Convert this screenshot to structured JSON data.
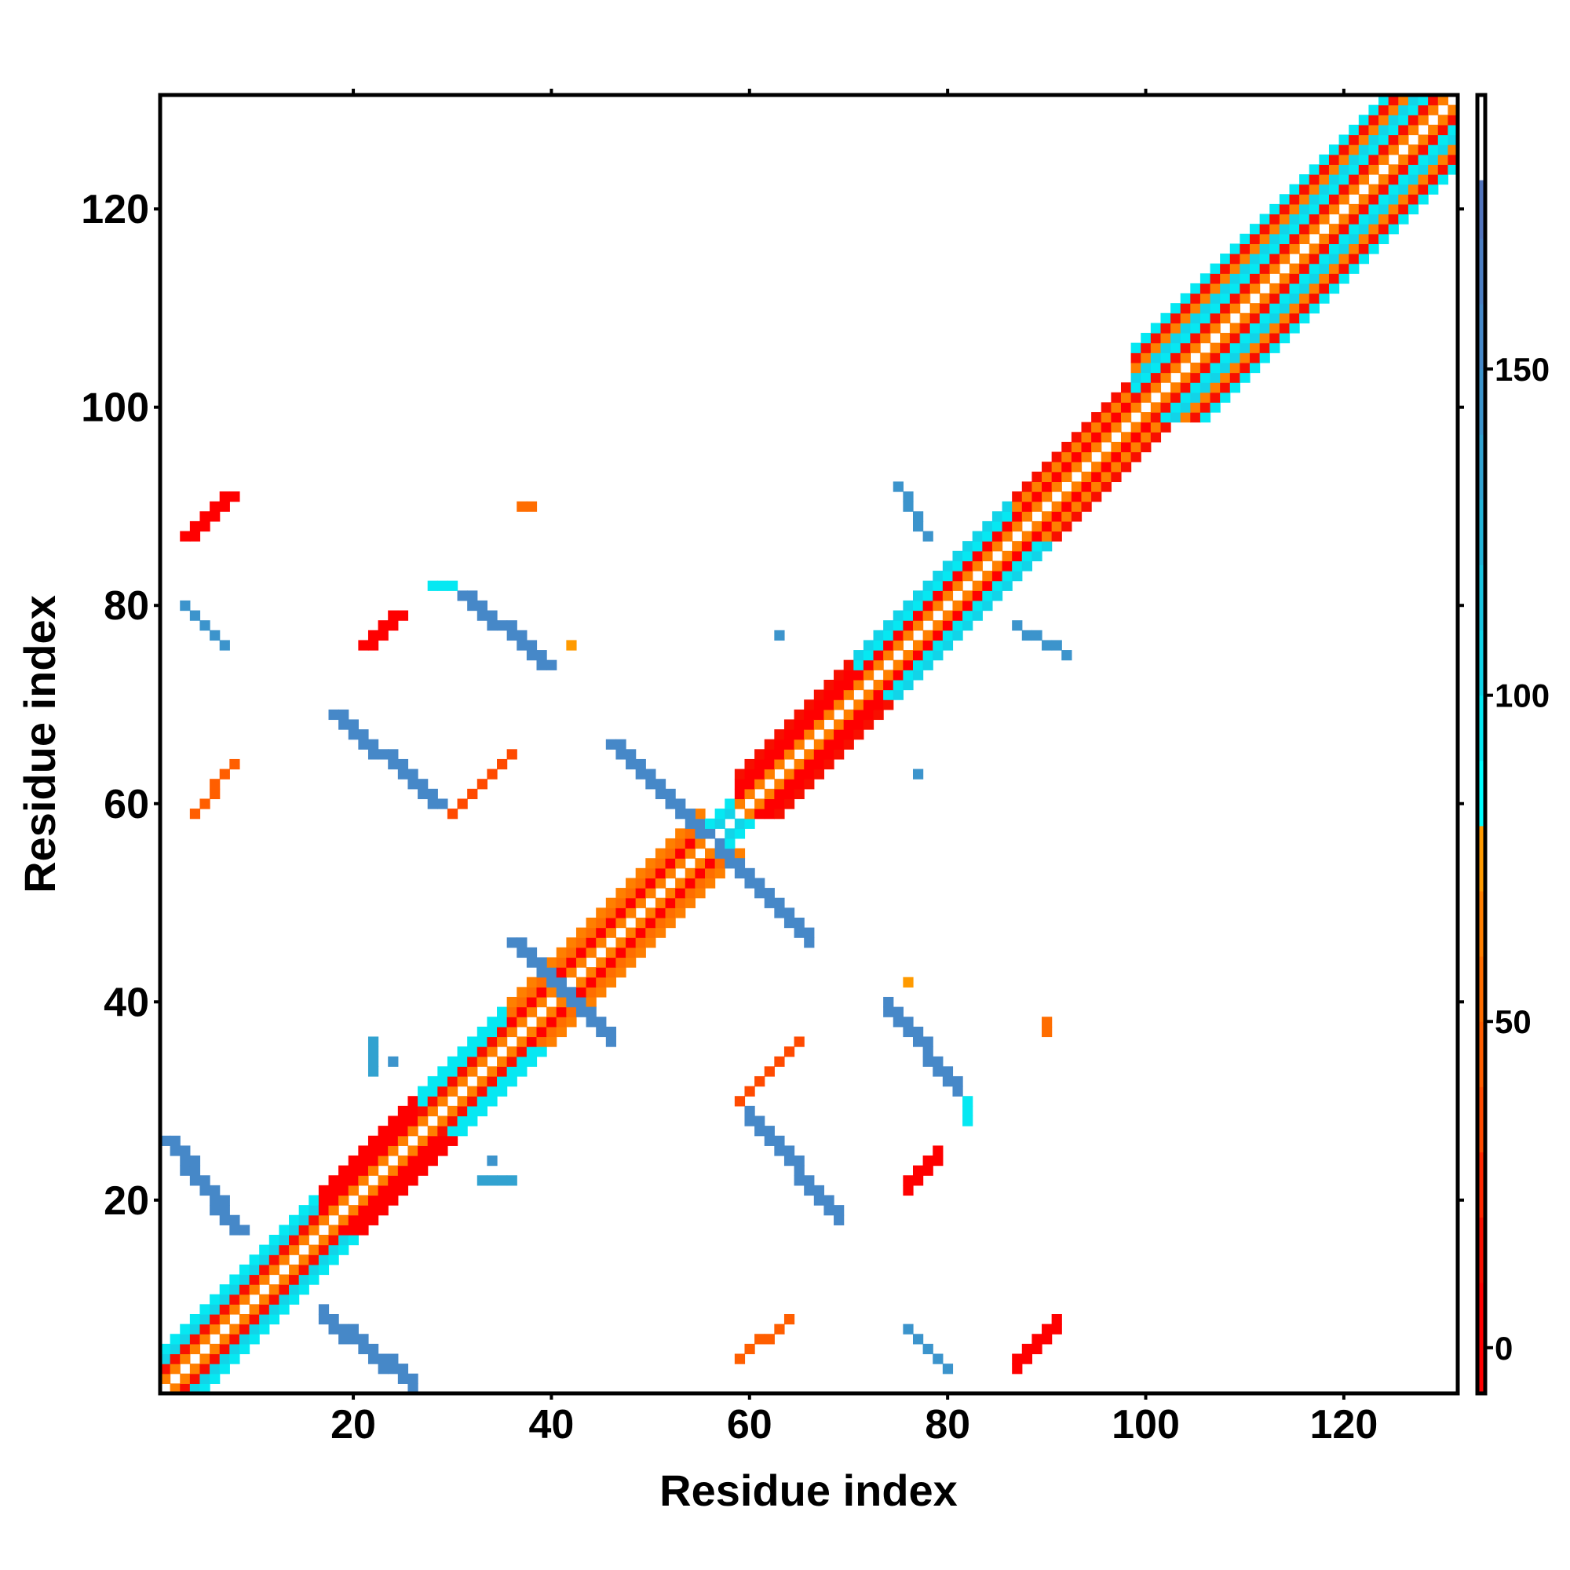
{
  "chart_data": {
    "type": "heatmap",
    "title": "",
    "xlabel": "Residue index",
    "ylabel": "Residue index",
    "n_residues": 131,
    "xlim": [
      0.5,
      131.5
    ],
    "ylim": [
      0.5,
      131.5
    ],
    "xticks": [
      20,
      40,
      60,
      80,
      100,
      120
    ],
    "yticks": [
      20,
      40,
      60,
      80,
      100,
      120
    ],
    "colorbar": {
      "range": [
        -7,
        192
      ],
      "ticks": [
        0,
        50,
        100,
        150
      ],
      "bins": [
        {
          "min": -7,
          "max": 10,
          "color": "#ff0000"
        },
        {
          "min": 10,
          "max": 20,
          "color": "#f80f00"
        },
        {
          "min": 20,
          "max": 30,
          "color": "#ff2800"
        },
        {
          "min": 30,
          "max": 40,
          "color": "#ff4a00"
        },
        {
          "min": 40,
          "max": 50,
          "color": "#ff5e00"
        },
        {
          "min": 50,
          "max": 60,
          "color": "#ff6d00"
        },
        {
          "min": 60,
          "max": 70,
          "color": "#ff7f00"
        },
        {
          "min": 70,
          "max": 80,
          "color": "#ff9a00"
        },
        {
          "min": 80,
          "max": 90,
          "color": "#00ffff"
        },
        {
          "min": 90,
          "max": 100,
          "color": "#06e8f2"
        },
        {
          "min": 100,
          "max": 110,
          "color": "#12d4e8"
        },
        {
          "min": 110,
          "max": 120,
          "color": "#1ac4e0"
        },
        {
          "min": 120,
          "max": 130,
          "color": "#24b4d8"
        },
        {
          "min": 130,
          "max": 140,
          "color": "#32a2d0"
        },
        {
          "min": 140,
          "max": 150,
          "color": "#3c94cc"
        },
        {
          "min": 150,
          "max": 160,
          "color": "#4688c8"
        },
        {
          "min": 160,
          "max": 170,
          "color": "#4c7ec2"
        },
        {
          "min": 170,
          "max": 179,
          "color": "#5274bc"
        },
        {
          "min": 179,
          "max": 192,
          "color": "#ffffff"
        }
      ]
    },
    "diagonal_segments": [
      {
        "from": 1,
        "to": 16,
        "offsets": [
          60,
          10,
          100,
          95
        ]
      },
      {
        "from": 17,
        "to": 26,
        "offsets": [
          65,
          5,
          5,
          3
        ]
      },
      {
        "from": 27,
        "to": 35,
        "offsets": [
          60,
          10,
          95,
          90
        ]
      },
      {
        "from": 36,
        "to": 55,
        "offsets": [
          62,
          5,
          55,
          65
        ]
      },
      {
        "from": 56,
        "to": 58,
        "offsets": [
          100,
          95
        ]
      },
      {
        "from": 59,
        "to": 70,
        "offsets": [
          60,
          3,
          3,
          10
        ]
      },
      {
        "from": 71,
        "to": 86,
        "offsets": [
          62,
          5,
          95,
          100
        ]
      },
      {
        "from": 87,
        "to": 98,
        "offsets": [
          60,
          5,
          60,
          10
        ]
      },
      {
        "from": 99,
        "to": 131,
        "offsets": [
          60,
          10,
          95,
          100,
          60,
          12,
          95
        ]
      }
    ],
    "contact_features": [
      {
        "from": [
          17,
          8
        ],
        "to": [
          26,
          1
        ],
        "width": 2,
        "value": 150
      },
      {
        "from": [
          60,
          28
        ],
        "to": [
          69,
          18
        ],
        "width": 2,
        "value": 158
      },
      {
        "from": [
          41,
          41
        ],
        "to": [
          46,
          36
        ],
        "width": 2,
        "value": 155
      },
      {
        "from": [
          57,
          55
        ],
        "to": [
          66,
          46
        ],
        "width": 2,
        "value": 152
      },
      {
        "from": [
          74,
          39
        ],
        "to": [
          81,
          31
        ],
        "width": 2,
        "value": 152
      },
      {
        "from": [
          76,
          7
        ],
        "to": [
          80,
          3
        ],
        "width": 1,
        "value": 148
      },
      {
        "from": [
          87,
          3
        ],
        "to": [
          91,
          7
        ],
        "width": 2,
        "value": 2
      },
      {
        "from": [
          59,
          4
        ],
        "to": [
          64,
          8
        ],
        "width": 1,
        "value": 40
      },
      {
        "from": [
          59,
          30
        ],
        "to": [
          65,
          36
        ],
        "width": 1,
        "value": 35
      },
      {
        "from": [
          76,
          21
        ],
        "to": [
          79,
          24
        ],
        "width": 2,
        "value": 5
      },
      {
        "from": [
          87,
          78
        ],
        "to": [
          92,
          75
        ],
        "width": 1,
        "value": 148
      },
      {
        "from": [
          63,
          77
        ],
        "to": [
          63,
          77
        ],
        "width": 1,
        "value": 148
      },
      {
        "from": [
          90,
          37
        ],
        "to": [
          90,
          37
        ],
        "width": 2,
        "value": 55
      },
      {
        "from": [
          76,
          42
        ],
        "to": [
          76,
          42
        ],
        "width": 1,
        "value": 70
      },
      {
        "from": [
          33,
          22
        ],
        "to": [
          36,
          22
        ],
        "width": 1,
        "value": 130
      },
      {
        "from": [
          34,
          24
        ],
        "to": [
          34,
          24
        ],
        "width": 1,
        "value": 140
      },
      {
        "from": [
          82,
          30
        ],
        "to": [
          82,
          28
        ],
        "width": 1,
        "value": 90
      }
    ]
  }
}
